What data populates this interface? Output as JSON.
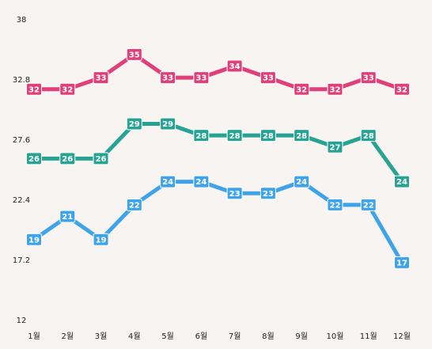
{
  "chart_data": {
    "type": "line",
    "title": "",
    "xlabel": "",
    "ylabel": "",
    "categories": [
      "1월",
      "2월",
      "3월",
      "4월",
      "5월",
      "6월",
      "7월",
      "8월",
      "9월",
      "10월",
      "11월",
      "12월"
    ],
    "ylim": [
      12,
      38
    ],
    "yticks": [
      "12",
      "17.2",
      "22.4",
      "27.6",
      "32.8",
      "38"
    ],
    "grid": false,
    "legend": "none",
    "series": [
      {
        "color": "#e0407a",
        "values": [
          32,
          32,
          33,
          35,
          33,
          33,
          34,
          33,
          32,
          32,
          33,
          32
        ]
      },
      {
        "color": "#26a392",
        "values": [
          26,
          26,
          26,
          29,
          29,
          28,
          28,
          28,
          28,
          27,
          28,
          24
        ]
      },
      {
        "color": "#3fa3ea",
        "values": [
          19,
          21,
          19,
          22,
          24,
          24,
          23,
          23,
          24,
          22,
          22,
          17
        ]
      }
    ]
  }
}
